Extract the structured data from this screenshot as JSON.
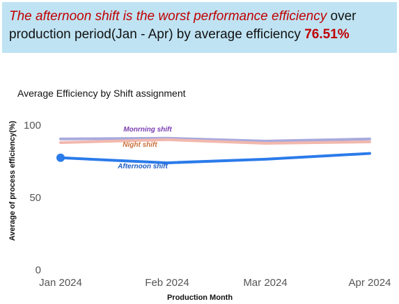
{
  "banner": {
    "highlight": "The afternoon shift is the worst performance efficiency",
    "text": " over production period(Jan - Apr) by average efficiency ",
    "value": "76.51%"
  },
  "chart_data": {
    "type": "line",
    "title": "Average Efficiency by Shift assignment",
    "xlabel": "Production Month",
    "ylabel": "Average of process efficiency(%)",
    "categories": [
      "Jan 2024",
      "Feb 2024",
      "Mar 2024",
      "Apr 2024"
    ],
    "yticks": [
      "0",
      "50",
      "100"
    ],
    "ylim": [
      0,
      100
    ],
    "series": [
      {
        "name": "Monrning shift",
        "values": [
          90.5,
          91,
          89,
          90.5
        ],
        "color": "#a9a9dc",
        "label_color": "#7b3fb0"
      },
      {
        "name": "Night shift",
        "values": [
          88,
          90,
          87.5,
          88.5
        ],
        "color": "#f2b8ad",
        "label_color": "#c8703a"
      },
      {
        "name": "Afternoon shift",
        "values": [
          77.5,
          74,
          76.5,
          80.5
        ],
        "color": "#2b7bea",
        "label_color": "#1f5fc4"
      }
    ]
  }
}
